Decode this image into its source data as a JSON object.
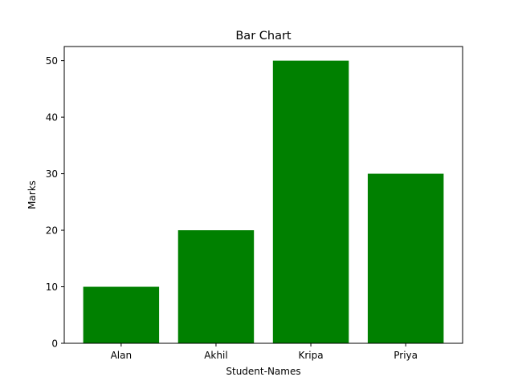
{
  "chart_data": {
    "type": "bar",
    "title": "Bar Chart",
    "xlabel": "Student-Names",
    "ylabel": "Marks",
    "categories": [
      "Alan",
      "Akhil",
      "Kripa",
      "Priya"
    ],
    "values": [
      10,
      20,
      50,
      30
    ],
    "ylim": [
      0,
      52.5
    ],
    "yticks": [
      0,
      10,
      20,
      30,
      40,
      50
    ],
    "bar_color": "#008000",
    "grid": false,
    "legend": "none"
  }
}
